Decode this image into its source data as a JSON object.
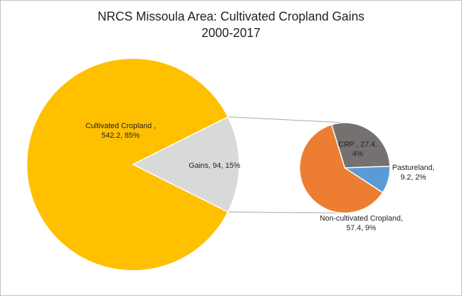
{
  "chart_data": {
    "type": "pie",
    "title_line1": "NRCS Missoula Area: Cultivated Cropland Gains",
    "title_line2": "2000-2017",
    "main_pie": {
      "slices": [
        {
          "name": "Cultivated Cropland",
          "value": 542.2,
          "percent": "85%",
          "color": "#FFC000",
          "label_line1": "Cultivated Cropland ,",
          "label_line2": "542.2, 85%"
        },
        {
          "name": "Gains",
          "value": 94,
          "percent": "15%",
          "color": "#D9D9D9",
          "label_line1": "Gains, 94, 15%",
          "label_line2": ""
        }
      ]
    },
    "secondary_pie": {
      "slices": [
        {
          "name": "CRP",
          "value": 27.4,
          "percent": "4%",
          "color": "#767171",
          "label_line1": "CRP , 27.4,",
          "label_line2": "4%"
        },
        {
          "name": "Pastureland",
          "value": 9.2,
          "percent": "2%",
          "color": "#5B9BD5",
          "label_line1": "Pastureland,",
          "label_line2": "9.2, 2%"
        },
        {
          "name": "Non-cultivated Cropland",
          "value": 57.4,
          "percent": "9%",
          "color": "#ED7D31",
          "label_line1": "Non-cultivated Cropland,",
          "label_line2": "57.4, 9%"
        }
      ]
    },
    "connector_color": "#A6A6A6"
  }
}
